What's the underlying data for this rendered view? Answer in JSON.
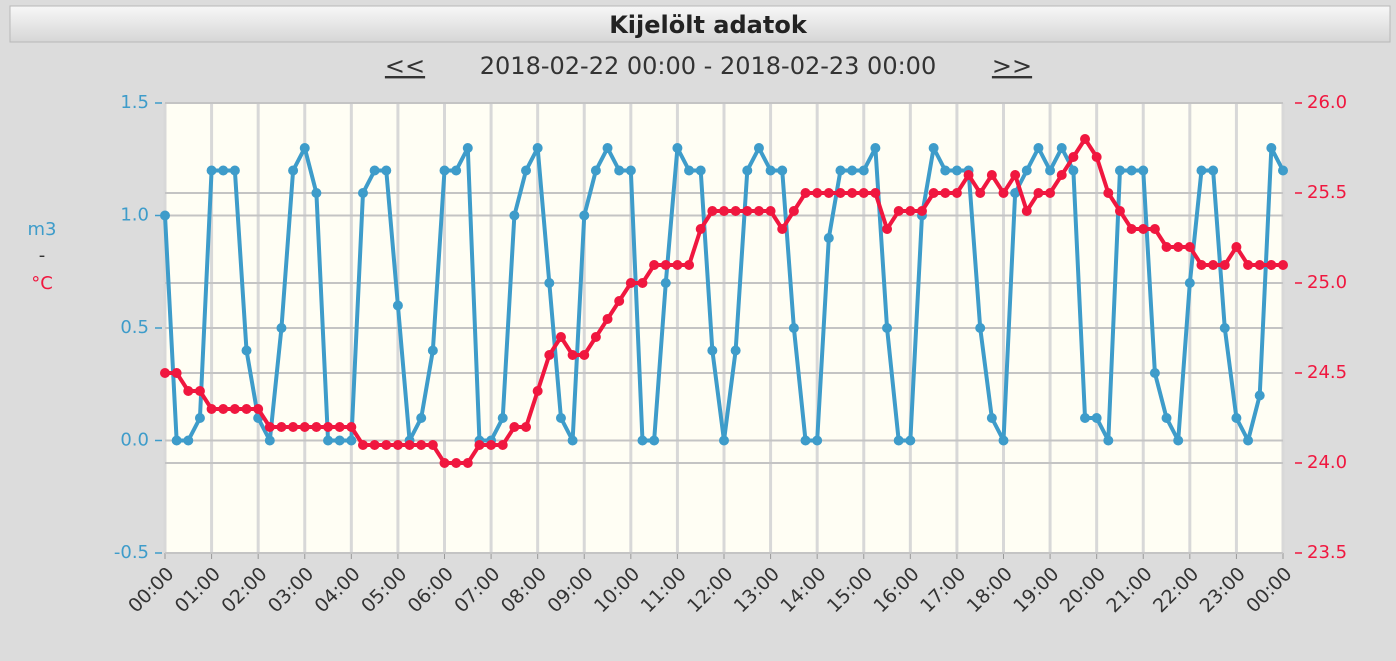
{
  "chart_data": {
    "type": "line",
    "title": "Kijelölt adatok",
    "nav_prev": "<<",
    "subtitle": "2018-02-22 00:00 - 2018-02-23 00:00",
    "nav_next": ">>",
    "y_label": "m3",
    "y_label_separator": "-",
    "y2_label": "°C",
    "x": [
      0,
      0.25,
      0.5,
      0.75,
      1,
      1.25,
      1.5,
      1.75,
      2,
      2.25,
      2.5,
      2.75,
      3,
      3.25,
      3.5,
      3.75,
      4,
      4.25,
      4.5,
      4.75,
      5,
      5.25,
      5.5,
      5.75,
      6,
      6.25,
      6.5,
      6.75,
      7,
      7.25,
      7.5,
      7.75,
      8,
      8.25,
      8.5,
      8.75,
      9,
      9.25,
      9.5,
      9.75,
      10,
      10.25,
      10.5,
      10.75,
      11,
      11.25,
      11.5,
      11.75,
      12,
      12.25,
      12.5,
      12.75,
      13,
      13.25,
      13.5,
      13.75,
      14,
      14.25,
      14.5,
      14.75,
      15,
      15.25,
      15.5,
      15.75,
      16,
      16.25,
      16.5,
      16.75,
      17,
      17.25,
      17.5,
      17.75,
      18,
      18.25,
      18.5,
      18.75,
      19,
      19.25,
      19.5,
      19.75,
      20,
      20.25,
      20.5,
      20.75,
      21,
      21.25,
      21.5,
      21.75,
      22,
      22.25,
      22.5,
      22.75,
      23,
      23.25,
      23.5,
      23.75,
      24
    ],
    "xlim": [
      0,
      24
    ],
    "xticks": [
      {
        "value": 0,
        "label": "00:00"
      },
      {
        "value": 1,
        "label": "01:00"
      },
      {
        "value": 2,
        "label": "02:00"
      },
      {
        "value": 3,
        "label": "03:00"
      },
      {
        "value": 4,
        "label": "04:00"
      },
      {
        "value": 5,
        "label": "05:00"
      },
      {
        "value": 6,
        "label": "06:00"
      },
      {
        "value": 7,
        "label": "07:00"
      },
      {
        "value": 8,
        "label": "08:00"
      },
      {
        "value": 9,
        "label": "09:00"
      },
      {
        "value": 10,
        "label": "10:00"
      },
      {
        "value": 11,
        "label": "11:00"
      },
      {
        "value": 12,
        "label": "12:00"
      },
      {
        "value": 13,
        "label": "13:00"
      },
      {
        "value": 14,
        "label": "14:00"
      },
      {
        "value": 15,
        "label": "15:00"
      },
      {
        "value": 16,
        "label": "16:00"
      },
      {
        "value": 17,
        "label": "17:00"
      },
      {
        "value": 18,
        "label": "18:00"
      },
      {
        "value": 19,
        "label": "19:00"
      },
      {
        "value": 20,
        "label": "20:00"
      },
      {
        "value": 21,
        "label": "21:00"
      },
      {
        "value": 22,
        "label": "22:00"
      },
      {
        "value": 23,
        "label": "23:00"
      },
      {
        "value": 24,
        "label": "00:00"
      }
    ],
    "ylim": [
      -0.5,
      1.5
    ],
    "yticks": [
      1.5,
      {
        "value": 1,
        "label": "1.0"
      },
      0.5,
      {
        "value": 0,
        "label": "0.0"
      },
      -0.5
    ],
    "y2lim": [
      23.5,
      26
    ],
    "y2ticks": [
      {
        "value": 26,
        "label": "26.0"
      },
      25.5,
      {
        "value": 25,
        "label": "25.0"
      },
      24.5,
      {
        "value": 24,
        "label": "24.0"
      },
      23.5
    ],
    "grid": true,
    "series": [
      {
        "color": "#3e9cca",
        "values": [
          1.0,
          0.0,
          0.0,
          0.1,
          1.2,
          1.2,
          1.2,
          0.4,
          0.1,
          0.0,
          0.5,
          1.2,
          1.3,
          1.1,
          0.0,
          0.0,
          0.0,
          1.1,
          1.2,
          1.2,
          0.6,
          0.0,
          0.1,
          0.4,
          1.2,
          1.2,
          1.3,
          0.0,
          0.0,
          0.1,
          1.0,
          1.2,
          1.3,
          0.7,
          0.1,
          0.0,
          1.0,
          1.2,
          1.3,
          1.2,
          1.2,
          0.0,
          0.0,
          0.7,
          1.3,
          1.2,
          1.2,
          0.4,
          0.0,
          0.4,
          1.2,
          1.3,
          1.2,
          1.2,
          0.5,
          0.0,
          0.0,
          0.9,
          1.2,
          1.2,
          1.2,
          1.3,
          0.5,
          0.0,
          0.0,
          1.0,
          1.3,
          1.2,
          1.2,
          1.2,
          0.5,
          0.1,
          0.0,
          1.1,
          1.2,
          1.3,
          1.2,
          1.3,
          1.2,
          0.1,
          0.1,
          0.0,
          1.2,
          1.2,
          1.2,
          0.3,
          0.1,
          0.0,
          0.7,
          1.2,
          1.2,
          0.5,
          0.1,
          0.0,
          0.2,
          1.3,
          1.2
        ]
      },
      {
        "color": "#f0173f",
        "axis": "y2",
        "values": [
          24.5,
          24.5,
          24.4,
          24.4,
          24.3,
          24.3,
          24.3,
          24.3,
          24.3,
          24.2,
          24.2,
          24.2,
          24.2,
          24.2,
          24.2,
          24.2,
          24.2,
          24.1,
          24.1,
          24.1,
          24.1,
          24.1,
          24.1,
          24.1,
          24.0,
          24.0,
          24.0,
          24.1,
          24.1,
          24.1,
          24.2,
          24.2,
          24.4,
          24.6,
          24.7,
          24.6,
          24.6,
          24.7,
          24.8,
          24.9,
          25.0,
          25.0,
          25.1,
          25.1,
          25.1,
          25.1,
          25.3,
          25.4,
          25.4,
          25.4,
          25.4,
          25.4,
          25.4,
          25.3,
          25.4,
          25.5,
          25.5,
          25.5,
          25.5,
          25.5,
          25.5,
          25.5,
          25.3,
          25.4,
          25.4,
          25.4,
          25.5,
          25.5,
          25.5,
          25.6,
          25.5,
          25.6,
          25.5,
          25.6,
          25.4,
          25.5,
          25.5,
          25.6,
          25.7,
          25.8,
          25.7,
          25.5,
          25.4,
          25.3,
          25.3,
          25.3,
          25.2,
          25.2,
          25.2,
          25.1,
          25.1,
          25.1,
          25.2,
          25.1,
          25.1,
          25.1,
          25.1
        ]
      }
    ]
  }
}
